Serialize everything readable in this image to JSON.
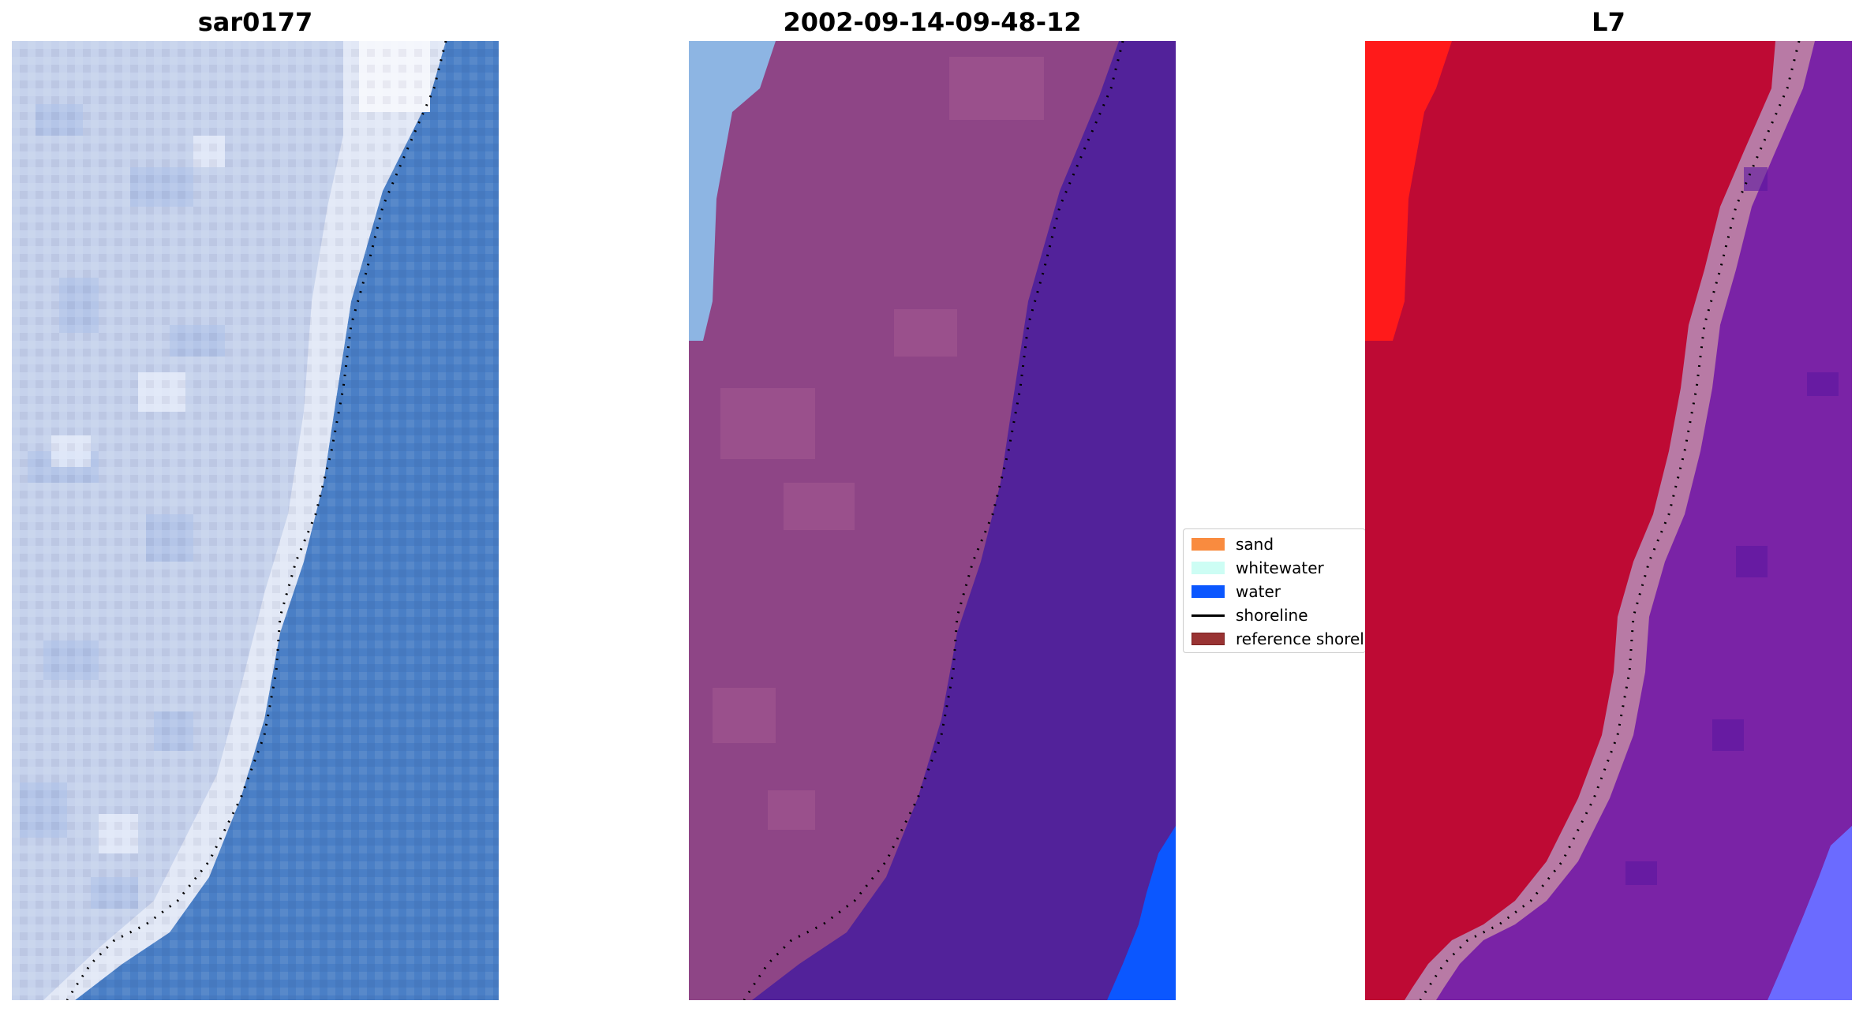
{
  "panels": [
    {
      "title": "sar0177"
    },
    {
      "title": "2002-09-14-09-48-12"
    },
    {
      "title": "L7"
    }
  ],
  "legend": {
    "items": [
      {
        "label": "sand",
        "kind": "patch",
        "color": "#f98b3f"
      },
      {
        "label": "whitewater",
        "kind": "patch",
        "color": "#cdfdf4"
      },
      {
        "label": "water",
        "kind": "patch",
        "color": "#0b57ff"
      },
      {
        "label": "shoreline",
        "kind": "line",
        "color": "#000000"
      },
      {
        "label": "reference shoreline",
        "kind": "patch",
        "color": "#993333"
      }
    ]
  },
  "colors": {
    "rgb_sand": "#c6d2ec",
    "rgb_whitewater": "#e8ecf8",
    "rgb_water": "#4a7fc6",
    "falsecolor_land": "#8e4586",
    "falsecolor_land_light": "#a0558f",
    "falsecolor_water": "#52229a",
    "falsecolor_bright": "#8db5e3",
    "classified_water_overlay": "#0b57ff",
    "index_land": "#be0a34",
    "index_bright": "#ff1a1a",
    "index_water": "#7a23a6",
    "index_water_far": "#6b6bff",
    "index_transition": "#b87aa5",
    "shoreline": "#000000"
  }
}
